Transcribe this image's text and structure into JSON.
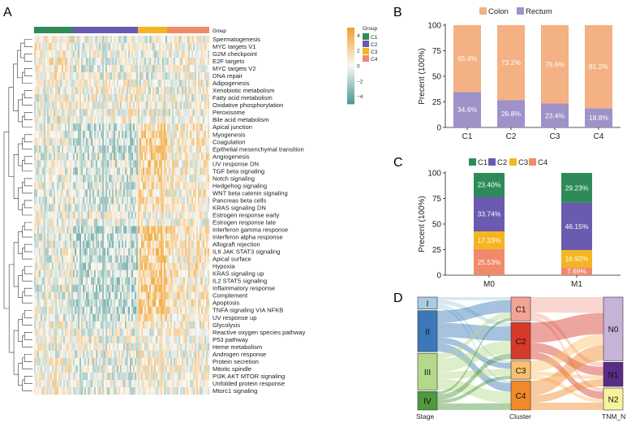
{
  "panel_labels": {
    "a": "A",
    "b": "B",
    "c": "C",
    "d": "D"
  },
  "colors": {
    "C1": "#2e8b57",
    "C2": "#6a5ab0",
    "C3": "#f5b521",
    "C4": "#ef8a6a",
    "colon": "#f4b183",
    "rectum": "#9e92c8",
    "heat_high": "#f2a12c",
    "heat_low": "#4f9a96",
    "stage_I": "#a9cde0",
    "stage_II": "#3a78b8",
    "stage_III": "#b5d98a",
    "stage_IV": "#4e9a3e",
    "cl_C1": "#f2a496",
    "cl_C2": "#d63a2a",
    "cl_C3": "#fbc06f",
    "cl_C4": "#f08a2a",
    "n_N0": "#c8b2d8",
    "n_N1": "#5a2c86",
    "n_N2": "#f7f39c"
  },
  "chart_data": [
    {
      "id": "A",
      "type": "heatmap",
      "group_bar_label": "Group",
      "groups": [
        "C1",
        "C2",
        "C3",
        "C4"
      ],
      "rows": [
        "Spermatogenesis",
        "MYC targets V1",
        "G2M checkpoint",
        "E2F targets",
        "MYC targets V2",
        "DNA repair",
        "Adipogenesis",
        "Xenobiotic metabolism",
        "Fatty acid metabolism",
        "Oxidative phosphorylation",
        "Peroxisome",
        "Bile acid metabolism",
        "Apical junction",
        "Myogenesis",
        "Coagulation",
        "Epithelial mesenchymal transition",
        "Angiogenesis",
        "UV response DN",
        "TGF beta signaling",
        "Notch signaling",
        "Hedgehog signaling",
        "WNT beta catenin signaling",
        "Pancreas beta cells",
        "KRAS signaling DN",
        "Estrogen response early",
        "Estrogen response late",
        "Interferon gamma response",
        "Interferon alpha response",
        "Allograft rejection",
        "IL6 JAK STAT3 signaling",
        "Apical surface",
        "Hypoxia",
        "KRAS signaling up",
        "IL2 STAT5 signaling",
        "Inflammatory response",
        "Complement",
        "Apoptosis",
        "TNFA signaling VIA NFKB",
        "UV response up",
        "Glycolysis",
        "Reactive oxygen species pathway",
        "P53 pathway",
        "Heme metabolism",
        "Androgen response",
        "Protein secretion",
        "Mitotic spindle",
        "PI3K AKT MTOR signaling",
        "Unfolded protein response",
        "Mtorc1 signaling"
      ],
      "legend_title": "Group",
      "legend_groups": [
        "C1",
        "C2",
        "C3",
        "C4"
      ],
      "scale_ticks": [
        "4",
        "2",
        "0",
        "−2",
        "−4"
      ],
      "scale_range": [
        -5,
        5
      ]
    },
    {
      "id": "B",
      "type": "bar",
      "stacked": true,
      "legend": [
        "Colon",
        "Rectum"
      ],
      "categories": [
        "C1",
        "C2",
        "C3",
        "C4"
      ],
      "series": [
        {
          "name": "Rectum",
          "values": [
            34.6,
            26.8,
            23.4,
            18.8
          ],
          "labels": [
            "34.6%",
            "26.8%",
            "23.4%",
            "18.8%"
          ]
        },
        {
          "name": "Colon",
          "values": [
            65.4,
            73.2,
            76.6,
            81.2
          ],
          "labels": [
            "65.4%",
            "73.2%",
            "76.6%",
            "81.2%"
          ]
        }
      ],
      "ylabel": "Precent (100%)",
      "ylim": [
        0,
        100
      ],
      "yticks": [
        "0",
        "25",
        "50",
        "75",
        "100"
      ]
    },
    {
      "id": "C",
      "type": "bar",
      "stacked": true,
      "legend": [
        "C1",
        "C2",
        "C3",
        "C4"
      ],
      "categories": [
        "M0",
        "M1"
      ],
      "series": [
        {
          "name": "C4",
          "values": [
            25.53,
            7.69
          ],
          "labels": [
            "25.53%",
            "7.69%"
          ]
        },
        {
          "name": "C3",
          "values": [
            17.33,
            16.92
          ],
          "labels": [
            "17.33%",
            "16.92%"
          ]
        },
        {
          "name": "C2",
          "values": [
            33.74,
            46.15
          ],
          "labels": [
            "33.74%",
            "46.15%"
          ]
        },
        {
          "name": "C1",
          "values": [
            23.4,
            29.23
          ],
          "labels": [
            "23.40%",
            "29.23%"
          ]
        }
      ],
      "ylabel": "Precent (100%)",
      "ylim": [
        0,
        100
      ],
      "yticks": [
        "0",
        "25",
        "50",
        "75",
        "100"
      ]
    },
    {
      "id": "D",
      "type": "sankey",
      "axes": [
        "Stage",
        "Cluster",
        "TNM_N"
      ],
      "stage": [
        {
          "name": "I",
          "value": 11
        },
        {
          "name": "II",
          "value": 38
        },
        {
          "name": "III",
          "value": 34
        },
        {
          "name": "IV",
          "value": 17
        }
      ],
      "cluster": [
        {
          "name": "C1",
          "value": 22
        },
        {
          "name": "C2",
          "value": 34
        },
        {
          "name": "C3",
          "value": 17
        },
        {
          "name": "C4",
          "value": 27
        }
      ],
      "tnm_n": [
        {
          "name": "N0",
          "value": 58
        },
        {
          "name": "N1",
          "value": 22
        },
        {
          "name": "N2",
          "value": 20
        }
      ]
    }
  ]
}
